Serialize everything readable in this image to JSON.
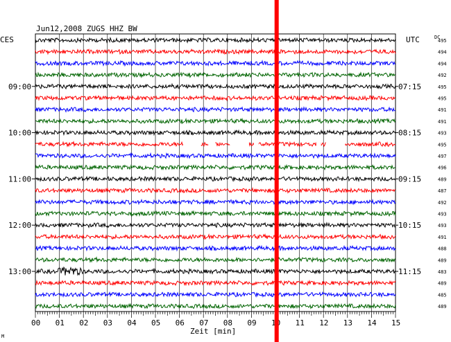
{
  "chart_data": {
    "type": "line",
    "title": "Jun12,2008   ZUGS HHZ BW",
    "xlabel": "Zeit [min]",
    "left_axis_label": "CES",
    "right_axis_label": "UTC",
    "dc_label": "DC",
    "x_ticks": [
      "00",
      "01",
      "02",
      "03",
      "04",
      "05",
      "06",
      "07",
      "08",
      "09",
      "10",
      "11",
      "12",
      "13",
      "14",
      "15"
    ],
    "xlim": [
      0,
      15
    ],
    "left_hour_labels": [
      "09:00",
      "10:00",
      "11:00",
      "12:00",
      "13:00"
    ],
    "right_hour_labels": [
      "07:15",
      "08:15",
      "09:15",
      "10:15",
      "11:15"
    ],
    "hour_label_trace_index": [
      4,
      8,
      12,
      16,
      20
    ],
    "trace_colors": [
      "#000000",
      "#ff0000",
      "#0000ff",
      "#006400"
    ],
    "dc_values": [
      "495",
      "494",
      "494",
      "492",
      "495",
      "495",
      "491",
      "491",
      "493",
      "495",
      "497",
      "496",
      "489",
      "487",
      "492",
      "493",
      "493",
      "491",
      "488",
      "489",
      "483",
      "489",
      "485",
      "489"
    ],
    "gaps_trace_index": 9,
    "gaps_minutes": [
      [
        6.15,
        6.9
      ],
      [
        7.2,
        7.5
      ],
      [
        8.1,
        8.9
      ],
      [
        9.1,
        9.3
      ],
      [
        11.7,
        11.9
      ],
      [
        12.1,
        12.9
      ]
    ],
    "event": {
      "trace_index": 20,
      "minute_start": 0.9,
      "minute_end": 2.0
    },
    "marker": {
      "minute": 10.05,
      "color": "#ff0000"
    },
    "corner_mark": "M"
  }
}
